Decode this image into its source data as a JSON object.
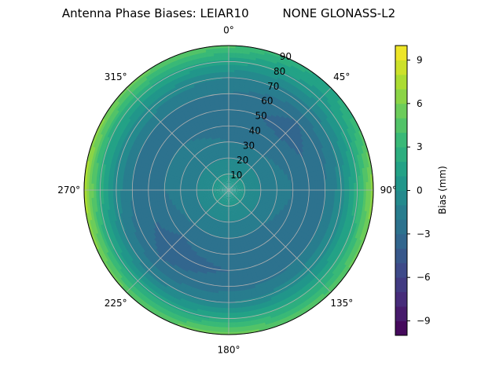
{
  "chart_data": {
    "type": "heatmap",
    "projection": "polar",
    "title": "Antenna Phase Biases: LEIAR10         NONE GLONASS-L2",
    "angular_tick_labels": [
      "0°",
      "45°",
      "90°",
      "135°",
      "180°",
      "225°",
      "270°",
      "315°"
    ],
    "angular_ticks_deg": [
      0,
      45,
      90,
      135,
      180,
      225,
      270,
      315
    ],
    "radial_ticks": [
      10,
      20,
      30,
      40,
      50,
      60,
      70,
      80,
      90
    ],
    "radial_tick_labels": [
      "10",
      "20",
      "30",
      "40",
      "50",
      "60",
      "70",
      "80",
      "90"
    ],
    "rlim": [
      0,
      90
    ],
    "theta_zero_location": "top",
    "theta_direction": "clockwise",
    "colormap": "viridis",
    "colorbar": {
      "label": "Bias (mm)",
      "vmin": -10,
      "vmax": 10,
      "levels": 20,
      "ticks": [
        -9,
        -6,
        -3,
        0,
        3,
        6,
        9
      ],
      "tick_labels": [
        "−9",
        "−6",
        "−3",
        "0",
        "3",
        "6",
        "9"
      ]
    },
    "grid": true,
    "azimuth_deg": [
      0,
      45,
      90,
      135,
      180,
      225,
      270,
      315
    ],
    "zenith_deg": [
      0,
      10,
      20,
      30,
      40,
      50,
      60,
      70,
      80,
      90
    ],
    "bias_mm": [
      [
        0.5,
        0.0,
        -1.0,
        -2.0,
        -2.5,
        -2.5,
        -2.0,
        -1.0,
        1.5,
        4.5
      ],
      [
        0.5,
        0.0,
        -1.0,
        -2.0,
        -2.5,
        -3.5,
        -3.0,
        -1.5,
        0.5,
        1.5
      ],
      [
        0.5,
        0.0,
        -1.0,
        -1.5,
        -2.0,
        -2.5,
        -2.0,
        -0.5,
        2.5,
        7.0
      ],
      [
        0.5,
        0.0,
        -1.0,
        -2.0,
        -2.5,
        -2.5,
        -2.0,
        -0.5,
        2.0,
        4.5
      ],
      [
        0.5,
        0.0,
        -1.0,
        -2.0,
        -2.5,
        -3.0,
        -2.5,
        -1.0,
        2.0,
        5.5
      ],
      [
        0.5,
        0.0,
        -1.0,
        -2.0,
        -3.0,
        -3.5,
        -3.0,
        -1.5,
        1.5,
        5.0
      ],
      [
        0.5,
        0.0,
        -1.0,
        -1.5,
        -2.0,
        -2.5,
        -2.0,
        -0.5,
        2.5,
        8.0
      ],
      [
        0.5,
        0.0,
        -1.0,
        -1.5,
        -2.0,
        -2.5,
        -2.0,
        -0.5,
        2.0,
        5.5
      ]
    ]
  }
}
